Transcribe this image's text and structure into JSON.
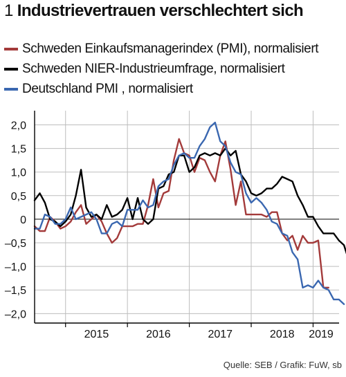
{
  "header": {
    "number": "1",
    "title": "Industrievertrauen verschlechtert sich"
  },
  "legend": [
    {
      "label": "Schweden Einkaufsmanagerindex (PMI), normalisiert",
      "color": "#a33a3a"
    },
    {
      "label": "Schweden NIER-Industrieumfrage, normalisiert",
      "color": "#000000"
    },
    {
      "label": "Deutschland PMI , normalisiert",
      "color": "#3a67b0"
    }
  ],
  "source": "Quelle: SEB / Grafik: FuW, sb",
  "chart_data": {
    "type": "line",
    "title": "Industrievertrauen verschlechtert sich",
    "xlabel": "",
    "ylabel": "",
    "x_start": 2014.5,
    "x_step": 0.08333,
    "xlim": [
      2014.5,
      2019.42
    ],
    "ylim": [
      -2.2,
      2.3
    ],
    "yticks": [
      2.0,
      1.5,
      1.0,
      0.5,
      0,
      -0.5,
      -1.0,
      -1.5,
      -2.0
    ],
    "ytick_labels": [
      "2,0",
      "1,5",
      "1,0",
      "0,5",
      "0",
      "–0,5",
      "–1,0",
      "–1,5",
      "–2,0"
    ],
    "xtick_labels": [
      {
        "label": "2015",
        "year": 2015
      },
      {
        "label": "2016",
        "year": 2016
      },
      {
        "label": "2017",
        "year": 2017
      },
      {
        "label": "2018",
        "year": 2018
      },
      {
        "label": "2019",
        "year": 2019
      }
    ],
    "series": [
      {
        "name": "Schweden Einkaufsmanagerindex (PMI), normalisiert",
        "color": "#a33a3a",
        "values": [
          -0.15,
          -0.25,
          -0.25,
          0.05,
          -0.05,
          -0.2,
          -0.15,
          -0.05,
          0.15,
          0.3,
          -0.1,
          0.0,
          0.1,
          -0.05,
          -0.3,
          -0.5,
          -0.4,
          -0.15,
          -0.15,
          -0.15,
          -0.1,
          -0.1,
          0.3,
          0.85,
          0.25,
          0.55,
          0.6,
          1.25,
          1.7,
          1.4,
          1.35,
          1.0,
          1.3,
          1.25,
          1.0,
          0.8,
          1.35,
          1.65,
          1.05,
          0.3,
          0.8,
          0.1,
          0.1,
          0.1,
          0.1,
          0.05,
          0.15,
          0.15,
          -0.3,
          -0.45,
          -0.35,
          -0.65,
          -0.35,
          -0.5,
          -0.5,
          -0.45,
          -1.45,
          -1.45
        ]
      },
      {
        "name": "Schweden NIER-Industrieumfrage, normalisiert",
        "color": "#000000",
        "values": [
          0.4,
          0.55,
          0.35,
          0.0,
          -0.05,
          -0.15,
          -0.05,
          0.1,
          0.5,
          1.05,
          0.25,
          0.05,
          0.1,
          0.0,
          0.3,
          0.05,
          0.1,
          0.2,
          0.45,
          0.0,
          0.45,
          0.0,
          -0.1,
          0.0,
          0.65,
          0.7,
          0.95,
          1.0,
          1.35,
          1.35,
          1.0,
          1.1,
          1.35,
          1.4,
          1.35,
          1.4,
          1.35,
          1.5,
          1.35,
          1.45,
          0.95,
          0.8,
          0.55,
          0.5,
          0.55,
          0.65,
          0.65,
          0.75,
          0.9,
          0.85,
          0.8,
          0.5,
          0.3,
          0.05,
          0.05,
          -0.15,
          -0.3,
          -0.3,
          -0.3,
          -0.45,
          -0.55,
          -0.9
        ]
      },
      {
        "name": "Deutschland PMI , normalisiert",
        "color": "#3a67b0",
        "values": [
          -0.2,
          -0.2,
          0.1,
          0.05,
          -0.1,
          -0.1,
          0.0,
          0.25,
          0.0,
          0.05,
          0.1,
          0.15,
          0.0,
          -0.3,
          -0.3,
          -0.1,
          -0.05,
          -0.15,
          0.2,
          0.2,
          0.2,
          0.4,
          0.25,
          0.3,
          0.7,
          0.8,
          0.85,
          1.15,
          1.35,
          1.4,
          1.3,
          1.3,
          1.55,
          1.7,
          1.95,
          2.05,
          1.65,
          1.55,
          1.2,
          1.0,
          0.95,
          0.55,
          0.35,
          0.45,
          0.35,
          0.2,
          -0.05,
          -0.1,
          -0.3,
          -0.35,
          -0.7,
          -0.85,
          -1.45,
          -1.4,
          -1.45,
          -1.3,
          -1.45,
          -1.5,
          -1.7,
          -1.7,
          -1.8
        ]
      }
    ]
  }
}
